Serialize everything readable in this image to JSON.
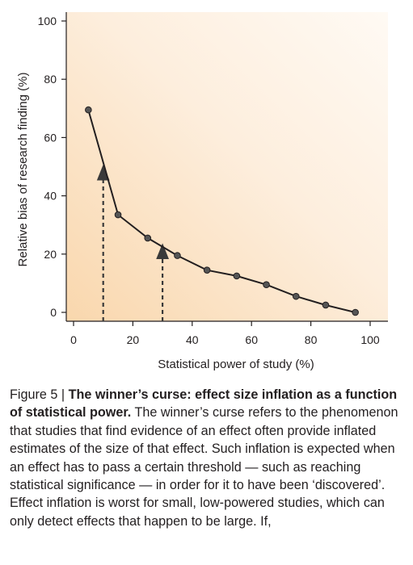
{
  "chart_data": {
    "type": "line",
    "xlabel": "Statistical power of study (%)",
    "ylabel": "Relative bias of research finding (%)",
    "xlim": [
      0,
      100
    ],
    "ylim": [
      0,
      100
    ],
    "x_ticks": [
      "0",
      "20",
      "40",
      "60",
      "80",
      "100"
    ],
    "y_ticks": [
      "0",
      "20",
      "40",
      "60",
      "80",
      "100"
    ],
    "series": [
      {
        "x": [
          5,
          15,
          25,
          35,
          45,
          55,
          65,
          75,
          85,
          95
        ],
        "y": [
          69.5,
          33.5,
          25.5,
          19.5,
          14.5,
          12.5,
          9.5,
          5.5,
          2.5,
          0
        ]
      }
    ],
    "annotations": [
      {
        "type": "dashed-arrow",
        "x": 10,
        "y_from": 0,
        "y_to": 48
      },
      {
        "type": "dashed-arrow",
        "x": 30,
        "y_from": 0,
        "y_to": 21
      }
    ],
    "background_gradient": [
      "#f9d7ad",
      "#fef6ec"
    ],
    "line_color": "#231f20"
  },
  "caption": {
    "label": "Figure 5 | ",
    "title": "The winner’s curse: effect size inflation as a function of statistical power.",
    "text": "The winner’s curse refers to the phenomenon that studies that find evidence of an effect often provide inflated estimates of the size of that effect. Such inflation is expected when an effect has to pass a certain threshold — such as reaching statistical significance — in order for it to have been ‘discovered’. Effect inflation is worst for small, low-powered studies, which can only detect effects that happen to be large. If,"
  }
}
